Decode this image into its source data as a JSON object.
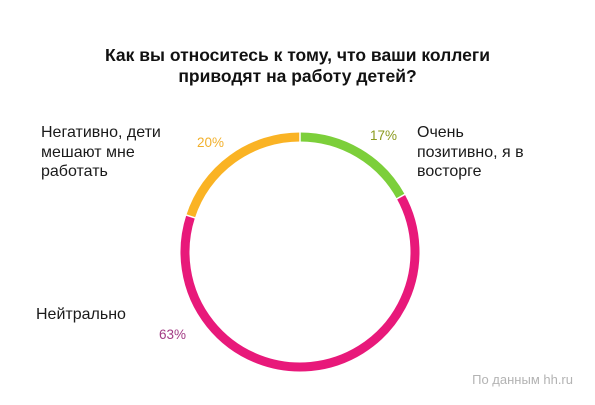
{
  "chart_data": {
    "type": "pie",
    "variant": "donut",
    "title_lines": [
      "Как вы относитесь к тому, что ваши коллеги",
      "приводят на работу детей?"
    ],
    "slices": [
      {
        "label": "Очень позитивно, я в восторге",
        "label_lines": [
          "Очень",
          "позитивно, я в",
          "восторге"
        ],
        "value": 17,
        "value_label": "17%",
        "color": "#7ccf3a"
      },
      {
        "label": "Нейтрально",
        "label_lines": [
          "Нейтрально"
        ],
        "value": 63,
        "value_label": "63%",
        "color": "#e8197a"
      },
      {
        "label": "Негативно, дети мешают мне работать",
        "label_lines": [
          "Негативно, дети",
          "мешают мне",
          "работать"
        ],
        "value": 20,
        "value_label": "20%",
        "color": "#fab324"
      }
    ],
    "value_label_colors": [
      "#8a9a1e",
      "#a23b84",
      "#f2b02c"
    ],
    "start_angle_deg": 0,
    "direction": "clockwise",
    "legend": "none"
  },
  "source": "По данным hh.ru"
}
